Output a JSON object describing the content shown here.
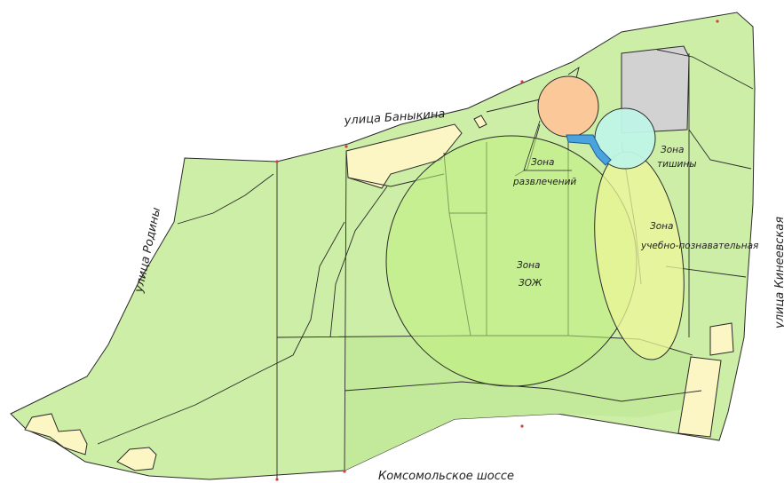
{
  "map": {
    "streets": {
      "north": "улица Баныкина",
      "west": "улица Родины",
      "east": "улица Кинеевская",
      "south": "Комсомольское шоссе"
    },
    "zones": {
      "entertainment": {
        "line1": "Зона",
        "line2": "развлечений"
      },
      "quiet": {
        "line1": "Зона",
        "line2": "тишины"
      },
      "educational": {
        "line1": "Зона",
        "line2": "учебно-познавательная"
      },
      "healthy_lifestyle": {
        "line1": "Зона",
        "line2": "ЗОЖ"
      }
    },
    "colors": {
      "park_base": "#cdeea6",
      "park_alt": "#c3e99a",
      "zozh_zone": "#bff07e",
      "educational_zone": "#ecf59a",
      "entertainment_zone": "#fbc89a",
      "quiet_zone": "#bff4e6",
      "water": "#4aa3df",
      "building": "#d2d2d2",
      "sandy_area": "#fcf6c4",
      "outline": "#2a2a2a"
    }
  }
}
